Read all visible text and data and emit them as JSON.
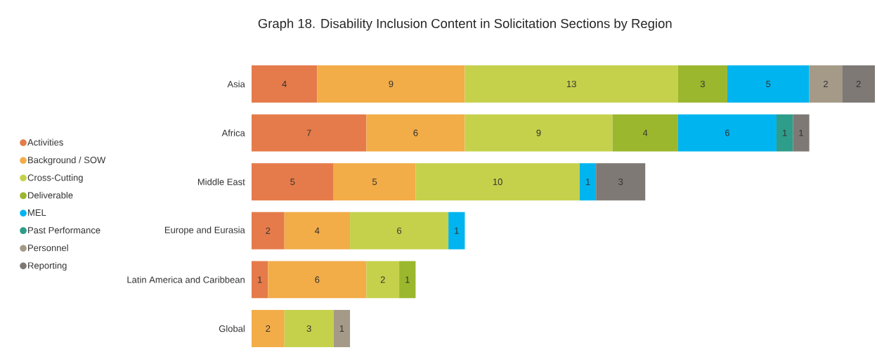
{
  "chart_data": {
    "type": "bar",
    "orientation": "horizontal",
    "stacked": true,
    "title": "Graph 18. Disability Inclusion Content in Solicitation Sections by Region",
    "categories": [
      "Asia",
      "Africa",
      "Middle East",
      "Europe and Eurasia",
      "Latin America and Caribbean",
      "Global"
    ],
    "series": [
      {
        "name": "Activities",
        "color": "#e57b4a",
        "values": [
          4,
          7,
          5,
          2,
          1,
          null
        ]
      },
      {
        "name": "Background / SOW",
        "color": "#f2ac48",
        "values": [
          9,
          6,
          5,
          4,
          6,
          2
        ]
      },
      {
        "name": "Cross-Cutting",
        "color": "#c5d14b",
        "values": [
          13,
          9,
          10,
          6,
          2,
          3
        ]
      },
      {
        "name": "Deliverable",
        "color": "#9bb72e",
        "values": [
          3,
          4,
          null,
          null,
          1,
          null
        ]
      },
      {
        "name": "MEL",
        "color": "#00b5ef",
        "values": [
          5,
          6,
          1,
          1,
          null,
          null
        ]
      },
      {
        "name": "Past Performance",
        "color": "#2e9d8a",
        "values": [
          null,
          1,
          null,
          null,
          null,
          null
        ]
      },
      {
        "name": "Personnel",
        "color": "#a59a87",
        "values": [
          2,
          null,
          null,
          null,
          null,
          1
        ]
      },
      {
        "name": "Reporting",
        "color": "#7f7975",
        "values": [
          2,
          1,
          3,
          null,
          null,
          null
        ]
      }
    ],
    "data_labels": true,
    "legend": "left"
  }
}
